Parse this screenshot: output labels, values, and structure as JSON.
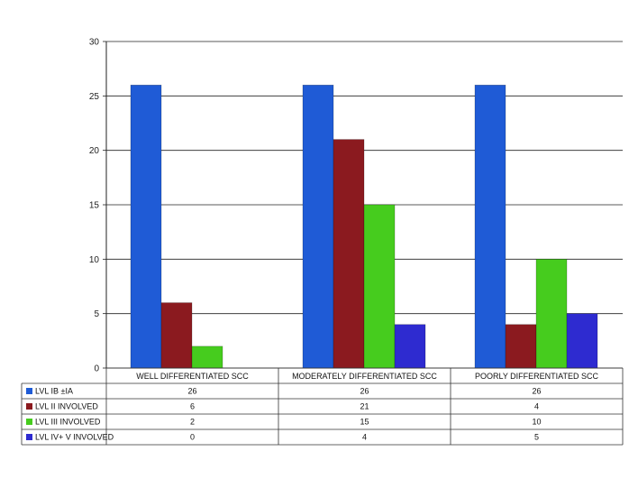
{
  "chart_data": {
    "type": "bar",
    "categories": [
      "WELL DIFFERENTIATED SCC",
      "MODERATELY DIFFERENTIATED SCC",
      "POORLY DIFFERENTIATED SCC"
    ],
    "series": [
      {
        "name": "LVL IB ±IA",
        "color": "#1f5bd6",
        "values": [
          26,
          26,
          26
        ]
      },
      {
        "name": "LVL II INVOLVED",
        "color": "#8b1a1f",
        "values": [
          6,
          21,
          4
        ]
      },
      {
        "name": "LVL III INVOLVED",
        "color": "#46cc1e",
        "values": [
          2,
          15,
          10
        ]
      },
      {
        "name": "LVL IV+ V INVOLVED",
        "color": "#2e2bd0",
        "values": [
          0,
          4,
          5
        ]
      }
    ],
    "ylim": [
      0,
      30
    ],
    "yticks": [
      0,
      5,
      10,
      15,
      20,
      25,
      30
    ],
    "grid": true,
    "legend": "data-table-below"
  }
}
